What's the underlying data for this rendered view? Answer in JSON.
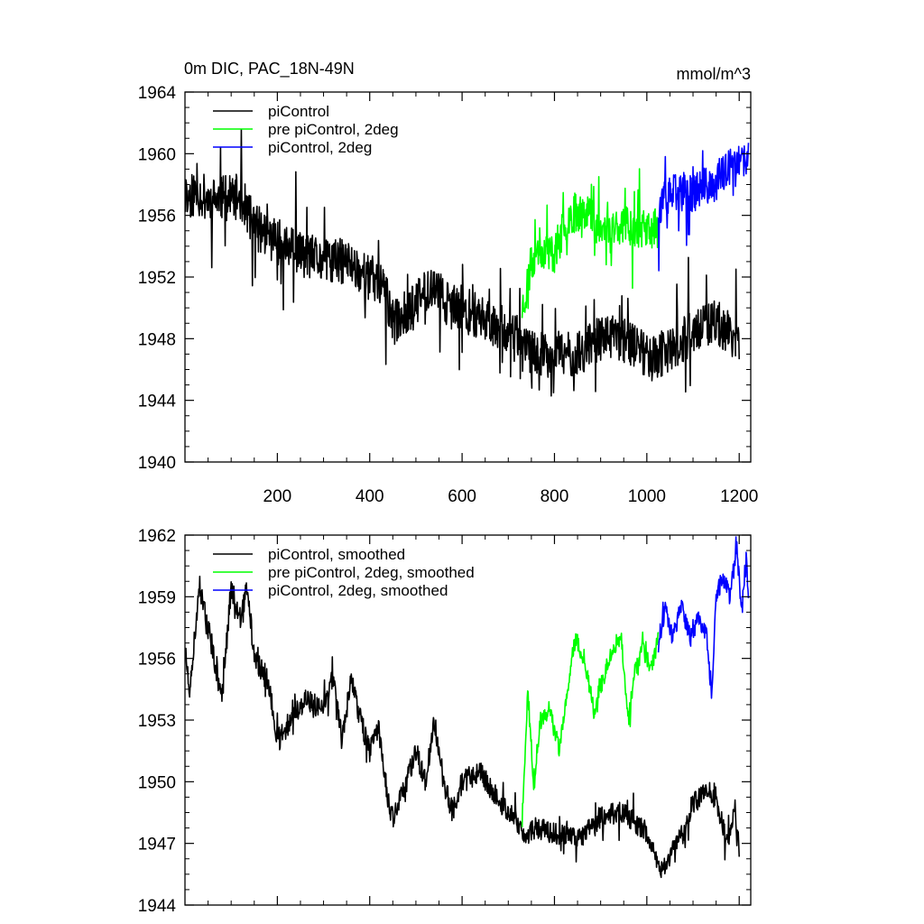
{
  "chart_data": [
    {
      "type": "line",
      "title": "0m DIC, PAC_18N-49N",
      "units": "mmol/m^3",
      "xlim": [
        0,
        1225
      ],
      "ylim": [
        1940,
        1964
      ],
      "yticks": [
        1940,
        1944,
        1948,
        1952,
        1956,
        1960,
        1964
      ],
      "xticks": [
        200,
        400,
        600,
        800,
        1000,
        1200
      ],
      "show_xtick_labels": true,
      "legend": "top-left",
      "series": [
        {
          "name": "piControl",
          "color": "#000000",
          "start": 1,
          "end": 1200,
          "anchors": [
            [
              1,
              1957
            ],
            [
              20,
              1957.5
            ],
            [
              60,
              1957
            ],
            [
              120,
              1957.2
            ],
            [
              150,
              1955.3
            ],
            [
              200,
              1954.3
            ],
            [
              250,
              1953.5
            ],
            [
              300,
              1953
            ],
            [
              350,
              1953
            ],
            [
              400,
              1952
            ],
            [
              430,
              1951.5
            ],
            [
              450,
              1949
            ],
            [
              500,
              1950.2
            ],
            [
              530,
              1951.5
            ],
            [
              580,
              1950
            ],
            [
              640,
              1949.5
            ],
            [
              700,
              1948.5
            ],
            [
              750,
              1947
            ],
            [
              800,
              1947
            ],
            [
              850,
              1947
            ],
            [
              900,
              1948
            ],
            [
              950,
              1948
            ],
            [
              1000,
              1947
            ],
            [
              1050,
              1947
            ],
            [
              1100,
              1948.5
            ],
            [
              1150,
              1949
            ],
            [
              1200,
              1948
            ]
          ],
          "noise": 1.5,
          "spike": 1.0,
          "seed": 11
        },
        {
          "name": "pre piControl, 2deg",
          "color": "#00ff00",
          "start": 730,
          "end": 1025,
          "anchors": [
            [
              730,
              1950
            ],
            [
              760,
              1954
            ],
            [
              800,
              1953.5
            ],
            [
              830,
              1956
            ],
            [
              870,
              1956.5
            ],
            [
              900,
              1955
            ],
            [
              950,
              1955.5
            ],
            [
              1000,
              1955
            ],
            [
              1025,
              1955.2
            ]
          ],
          "noise": 1.3,
          "spike": 0.8,
          "seed": 23
        },
        {
          "name": "piControl, 2deg",
          "color": "#0000ff",
          "start": 1025,
          "end": 1220,
          "anchors": [
            [
              1025,
              1956.5
            ],
            [
              1060,
              1957.5
            ],
            [
              1100,
              1957.5
            ],
            [
              1140,
              1958
            ],
            [
              1180,
              1959
            ],
            [
              1220,
              1959.5
            ]
          ],
          "noise": 1.3,
          "spike": 0.9,
          "seed": 37
        }
      ]
    },
    {
      "type": "line",
      "title": "",
      "units": "",
      "xlim": [
        0,
        1225
      ],
      "ylim": [
        1944,
        1962
      ],
      "yticks": [
        1944,
        1947,
        1950,
        1953,
        1956,
        1959,
        1962
      ],
      "xticks": [
        200,
        400,
        600,
        800,
        1000,
        1200
      ],
      "show_xtick_labels": false,
      "legend": "top-left",
      "series": [
        {
          "name": "piControl, smoothed",
          "color": "#000000",
          "start": 1,
          "end": 1200,
          "anchors": [
            [
              1,
              1956.5
            ],
            [
              10,
              1954
            ],
            [
              30,
              1959.5
            ],
            [
              55,
              1957
            ],
            [
              80,
              1954
            ],
            [
              100,
              1959.5
            ],
            [
              120,
              1958
            ],
            [
              135,
              1959.5
            ],
            [
              150,
              1956
            ],
            [
              180,
              1955
            ],
            [
              200,
              1952
            ],
            [
              230,
              1953
            ],
            [
              260,
              1954
            ],
            [
              300,
              1953.5
            ],
            [
              320,
              1955
            ],
            [
              340,
              1952
            ],
            [
              360,
              1955
            ],
            [
              380,
              1953
            ],
            [
              400,
              1951.5
            ],
            [
              420,
              1952.5
            ],
            [
              440,
              1949
            ],
            [
              450,
              1948.3
            ],
            [
              480,
              1950
            ],
            [
              500,
              1951.5
            ],
            [
              520,
              1950
            ],
            [
              540,
              1953
            ],
            [
              560,
              1950
            ],
            [
              580,
              1948.5
            ],
            [
              600,
              1950
            ],
            [
              640,
              1950.5
            ],
            [
              680,
              1949
            ],
            [
              720,
              1948
            ],
            [
              740,
              1947.3
            ],
            [
              760,
              1947.8
            ],
            [
              800,
              1947.5
            ],
            [
              850,
              1947.2
            ],
            [
              900,
              1948.3
            ],
            [
              950,
              1948.5
            ],
            [
              1000,
              1947.5
            ],
            [
              1030,
              1945.5
            ],
            [
              1050,
              1946.5
            ],
            [
              1080,
              1947.5
            ],
            [
              1100,
              1949
            ],
            [
              1130,
              1949.5
            ],
            [
              1150,
              1949.2
            ],
            [
              1175,
              1947
            ],
            [
              1190,
              1949
            ],
            [
              1200,
              1946.5
            ]
          ],
          "noise": 0.55,
          "spike": 0.2,
          "seed": 51
        },
        {
          "name": "pre piControl, 2deg, smoothed",
          "color": "#00ff00",
          "start": 730,
          "end": 1025,
          "anchors": [
            [
              730,
              1948
            ],
            [
              742,
              1954.5
            ],
            [
              755,
              1950
            ],
            [
              770,
              1953
            ],
            [
              790,
              1953.5
            ],
            [
              810,
              1951.5
            ],
            [
              825,
              1954
            ],
            [
              845,
              1957
            ],
            [
              865,
              1956
            ],
            [
              885,
              1953.5
            ],
            [
              905,
              1955
            ],
            [
              925,
              1956.5
            ],
            [
              945,
              1957
            ],
            [
              960,
              1953
            ],
            [
              975,
              1955.5
            ],
            [
              990,
              1956.5
            ],
            [
              1010,
              1955.5
            ],
            [
              1025,
              1957
            ]
          ],
          "noise": 0.45,
          "spike": 0.2,
          "seed": 63
        },
        {
          "name": "piControl, 2deg, smoothed",
          "color": "#0000ff",
          "start": 1025,
          "end": 1220,
          "anchors": [
            [
              1025,
              1956.5
            ],
            [
              1040,
              1958.5
            ],
            [
              1055,
              1957
            ],
            [
              1075,
              1958.5
            ],
            [
              1095,
              1957
            ],
            [
              1110,
              1958
            ],
            [
              1130,
              1957
            ],
            [
              1140,
              1954
            ],
            [
              1150,
              1959
            ],
            [
              1165,
              1960
            ],
            [
              1180,
              1959
            ],
            [
              1195,
              1961.5
            ],
            [
              1205,
              1958
            ],
            [
              1215,
              1961
            ],
            [
              1220,
              1958.5
            ]
          ],
          "noise": 0.45,
          "spike": 0.2,
          "seed": 77
        }
      ]
    }
  ]
}
